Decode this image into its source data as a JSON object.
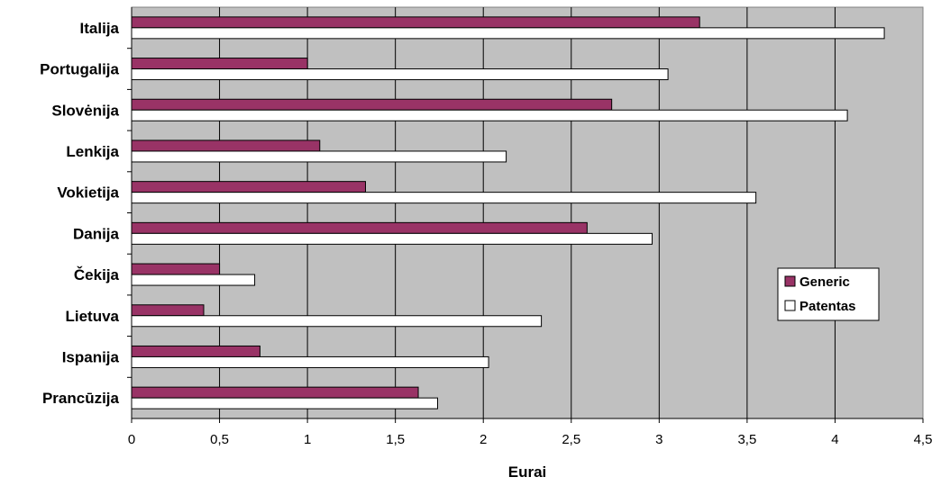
{
  "chart_data": {
    "type": "bar",
    "orientation": "horizontal",
    "categories": [
      "Italija",
      "Portugalija",
      "Slovėnija",
      "Lenkija",
      "Vokietija",
      "Danija",
      "Čekija",
      "Lietuva",
      "Ispanija",
      "Prancūzija"
    ],
    "series": [
      {
        "name": "Generic",
        "color": "#993366",
        "values": [
          3.23,
          1.0,
          2.73,
          1.07,
          1.33,
          2.59,
          0.5,
          0.41,
          0.73,
          1.63
        ]
      },
      {
        "name": "Patentas",
        "color": "#ffffff",
        "values": [
          4.28,
          3.05,
          4.07,
          2.13,
          3.55,
          2.96,
          0.7,
          2.33,
          2.03,
          1.74
        ]
      }
    ],
    "xlabel": "Eurai",
    "xlim": [
      0,
      4.5
    ],
    "xticks": [
      "0",
      "0,5",
      "1",
      "1,5",
      "2",
      "2,5",
      "3",
      "3,5",
      "4",
      "4,5"
    ],
    "grid": true,
    "plot_background": "#c0c0c0",
    "legend_position": "right"
  }
}
